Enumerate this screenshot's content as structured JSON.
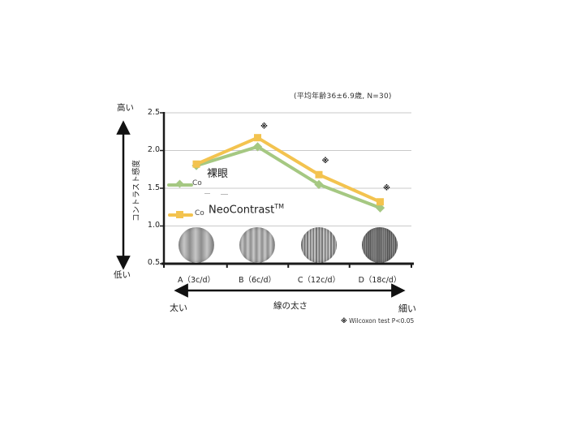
{
  "annotation": "(平均年齢36±6.9歳, N=30)",
  "y_axis": {
    "title": "コントラスト感度",
    "high_label": "高い",
    "low_label": "低い"
  },
  "x_axis": {
    "title": "線の太さ",
    "left_label": "太い",
    "right_label": "細い"
  },
  "legend": {
    "items": [
      {
        "prefix": "Co",
        "label": "裸眼",
        "sup": ""
      },
      {
        "prefix": "Co",
        "label": "NeoContrast",
        "sup": "TM"
      }
    ]
  },
  "footnote": {
    "marker": "※",
    "text": "Wilcoxon test P<0.05"
  },
  "chart_data": {
    "type": "line",
    "title": "",
    "categories": [
      "A（3c/d）",
      "B（6c/d）",
      "C（12c/d）",
      "D（18c/d）"
    ],
    "series": [
      {
        "name": "裸眼",
        "color": "#a5c882",
        "marker": "diamond",
        "values": [
          1.8,
          2.05,
          1.55,
          1.24
        ]
      },
      {
        "name": "NeoContrast™",
        "color": "#f3c34f",
        "marker": "square",
        "values": [
          1.82,
          2.17,
          1.68,
          1.32
        ]
      }
    ],
    "ylim": [
      0.5,
      2.5
    ],
    "yticks": [
      "2.5",
      "2.0",
      "1.5",
      "1.0",
      "0.5"
    ],
    "grid": true,
    "legend_position": "inside-left",
    "significance_marker": "※",
    "significant_points": [
      {
        "category_index": 1,
        "y": 2.33
      },
      {
        "category_index": 2,
        "y": 1.87
      },
      {
        "category_index": 3,
        "y": 1.51
      }
    ],
    "stimulus_circles": [
      "grating-3cpd",
      "grating-6cpd",
      "grating-12cpd",
      "grating-18cpd"
    ]
  }
}
